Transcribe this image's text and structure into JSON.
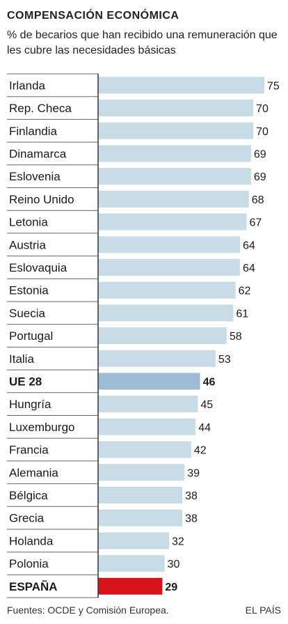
{
  "header": {
    "title": "COMPENSACIÓN ECONÓMICA",
    "subtitle": "% de becarios que han recibido una remunera­ción que les cubre las necesidades básicas"
  },
  "footer": {
    "source": "Fuentes: OCDE y Comisión Europea.",
    "brand": "EL PAÍS"
  },
  "colors": {
    "bar": "#c8dce6",
    "highlight_eu": "#9bbbd6",
    "highlight_spain": "#d8121a",
    "rule": "#666666"
  },
  "chart_data": {
    "type": "bar",
    "orientation": "horizontal",
    "categories": [
      "Irlanda",
      "Rep. Checa",
      "Finlandia",
      "Dinamarca",
      "Eslovenia",
      "Reino Unido",
      "Letonia",
      "Austria",
      "Eslovaquia",
      "Estonia",
      "Suecia",
      "Portugal",
      "Italia",
      "UE 28",
      "Hungría",
      "Luxemburgo",
      "Francia",
      "Alemania",
      "Bélgica",
      "Grecia",
      "Holanda",
      "Polonia",
      "ESPAÑA"
    ],
    "values": [
      75,
      70,
      70,
      69,
      69,
      68,
      67,
      64,
      64,
      62,
      61,
      58,
      53,
      46,
      45,
      44,
      42,
      39,
      38,
      38,
      32,
      30,
      29
    ],
    "highlights": {
      "UE 28": "eu",
      "ESPAÑA": "spain"
    },
    "xlim": [
      0,
      75
    ],
    "grid": false,
    "legend": "none"
  }
}
